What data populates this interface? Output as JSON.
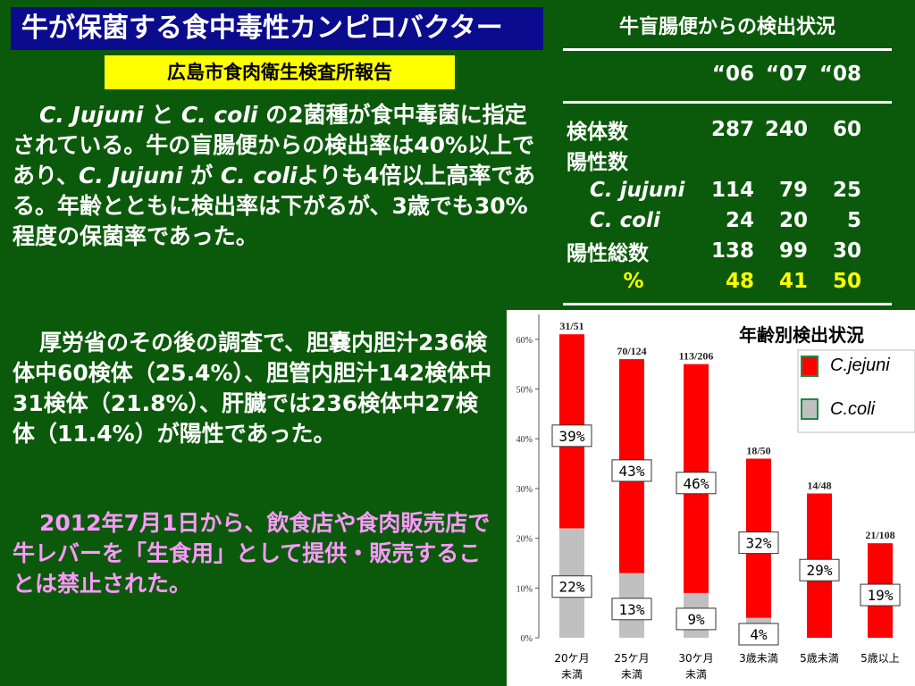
{
  "title": "牛が保菌する食中毒性カンピロバクター",
  "report_label": "広島市食肉衛生検査所報告",
  "para1": {
    "t1": "C. Jujuni",
    "t2": " と ",
    "t3": "C. coli",
    "t4": " の2菌種が食中毒菌に指定されている。牛の盲腸便からの検出率は40%以上であり、",
    "t5": "C. Jujuni",
    "t6": " が ",
    "t7": "C. coli",
    "t8": "よりも4倍以上高率である。年齢とともに検出率は下がるが、3歳でも30%程度の保菌率であった。"
  },
  "para2": "厚労省のその後の調査で、胆嚢内胆汁236検体中60検体（25.4%）、胆管内胆汁142検体中31検体（21.8%）、肝臓では236検体中27検体（11.4%）が陽性であった。",
  "para3": "2012年7月1日から、飲食店や食肉販売店で牛レバーを「生食用」として提供・販売することは禁止された。",
  "table": {
    "title": "牛盲腸便からの検出状況",
    "years": [
      "“06",
      "“07",
      "“08"
    ],
    "rows": [
      {
        "label": "検体数",
        "values": [
          "287",
          "240",
          "60"
        ]
      },
      {
        "label": "陽性数",
        "values": [
          "",
          "",
          ""
        ]
      },
      {
        "label": "C. jujuni",
        "values": [
          "114",
          "79",
          "25"
        ]
      },
      {
        "label": "C. coli",
        "values": [
          "24",
          "20",
          "5"
        ]
      },
      {
        "label": "陽性総数",
        "values": [
          "138",
          "99",
          "30"
        ]
      },
      {
        "label": "%",
        "values": [
          "48",
          "41",
          "50"
        ]
      }
    ]
  },
  "colors": {
    "background": "#0b5a0b",
    "title_bg": "#0b0b8e",
    "report_bg": "#ffff00",
    "para3_text": "#ff99ff",
    "jejuni": "#ff0000",
    "coli": "#c0c0c0"
  },
  "chart_data": {
    "type": "bar",
    "title": "年齢別検出状況",
    "stacked": true,
    "categories": [
      "20ケ月未満",
      "25ケ月未満",
      "30ケ月未満",
      "3歳未満",
      "5歳未満",
      "5歳以上"
    ],
    "category_lines": [
      [
        "20ケ月",
        "未満"
      ],
      [
        "25ケ月",
        "未満"
      ],
      [
        "30ケ月",
        "未満"
      ],
      [
        "3歳未満",
        ""
      ],
      [
        "5歳未満",
        ""
      ],
      [
        "5歳以上",
        ""
      ]
    ],
    "fractions": [
      "31/51",
      "70/124",
      "113/206",
      "18/50",
      "14/48",
      "21/108"
    ],
    "series": [
      {
        "name": "C.coli",
        "values": [
          22,
          13,
          9,
          4,
          0,
          0
        ],
        "labels": [
          "22%",
          "13%",
          "9%",
          "4%",
          "",
          ""
        ],
        "color": "#c0c0c0"
      },
      {
        "name": "C.jejuni",
        "values": [
          39,
          43,
          46,
          32,
          29,
          19
        ],
        "labels": [
          "39%",
          "43%",
          "46%",
          "32%",
          "29%",
          "19%"
        ],
        "color": "#ff0000"
      }
    ],
    "yticks": [
      "0%",
      "10%",
      "20%",
      "30%",
      "40%",
      "50%",
      "60%"
    ],
    "ylim": [
      0,
      65
    ],
    "legend_position": "top-right"
  }
}
